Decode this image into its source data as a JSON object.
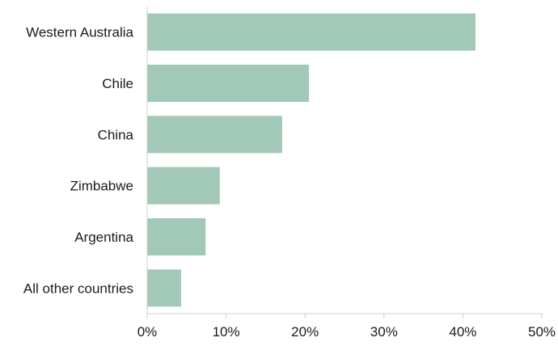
{
  "chart_data": {
    "type": "bar",
    "orientation": "horizontal",
    "categories": [
      "Western Australia",
      "Chile",
      "China",
      "Zimbabwe",
      "Argentina",
      "All other countries"
    ],
    "values": [
      41.6,
      20.5,
      17.1,
      9.2,
      7.4,
      4.3
    ],
    "x_ticks": [
      "0%",
      "10%",
      "20%",
      "30%",
      "40%",
      "50%"
    ],
    "xlim": [
      0,
      50
    ],
    "grid": false,
    "legend": "none",
    "bar_color": "#a2c8b8",
    "axis_color": "#d0d0d0",
    "title": "",
    "xlabel": "",
    "ylabel": ""
  }
}
